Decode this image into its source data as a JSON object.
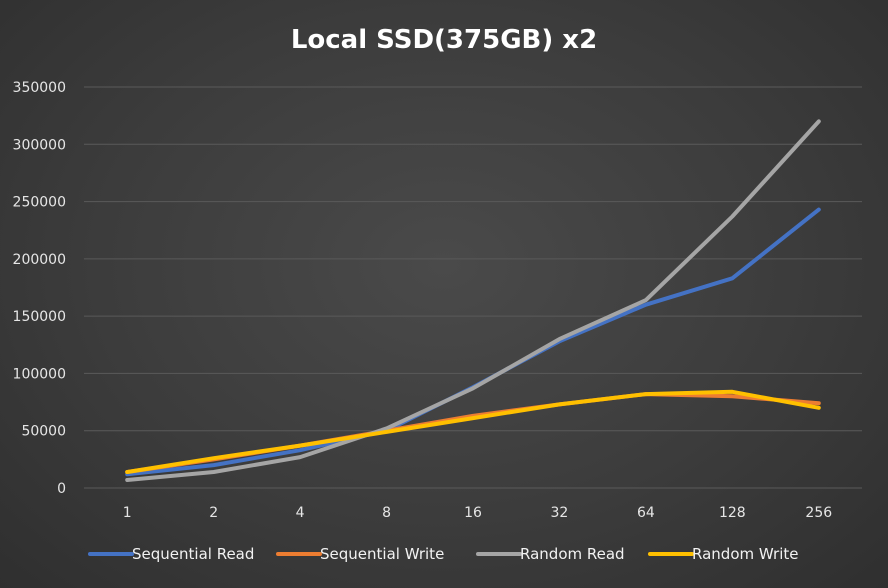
{
  "chart_data": {
    "type": "line",
    "title": "Local SSD(375GB) x2",
    "xlabel": "",
    "ylabel": "",
    "categories": [
      "1",
      "2",
      "4",
      "8",
      "16",
      "32",
      "64",
      "128",
      "256"
    ],
    "ylim": [
      0,
      350000
    ],
    "yticks": [
      0,
      50000,
      100000,
      150000,
      200000,
      250000,
      300000,
      350000
    ],
    "grid": true,
    "legend_position": "bottom",
    "series": [
      {
        "name": "Sequential Read",
        "color": "#4472c4",
        "values": [
          12000,
          20000,
          33000,
          50000,
          88000,
          128000,
          160000,
          183000,
          243000
        ]
      },
      {
        "name": "Sequential Write",
        "color": "#ed7d31",
        "values": [
          14000,
          25000,
          37000,
          50000,
          63000,
          73000,
          82000,
          80000,
          74000
        ]
      },
      {
        "name": "Random Read",
        "color": "#a5a5a5",
        "values": [
          7000,
          14000,
          27000,
          52000,
          87000,
          130000,
          164000,
          237000,
          320000
        ]
      },
      {
        "name": "Random Write",
        "color": "#ffc000",
        "values": [
          14000,
          26000,
          37000,
          49000,
          61000,
          73000,
          82000,
          84000,
          70000
        ]
      }
    ]
  }
}
